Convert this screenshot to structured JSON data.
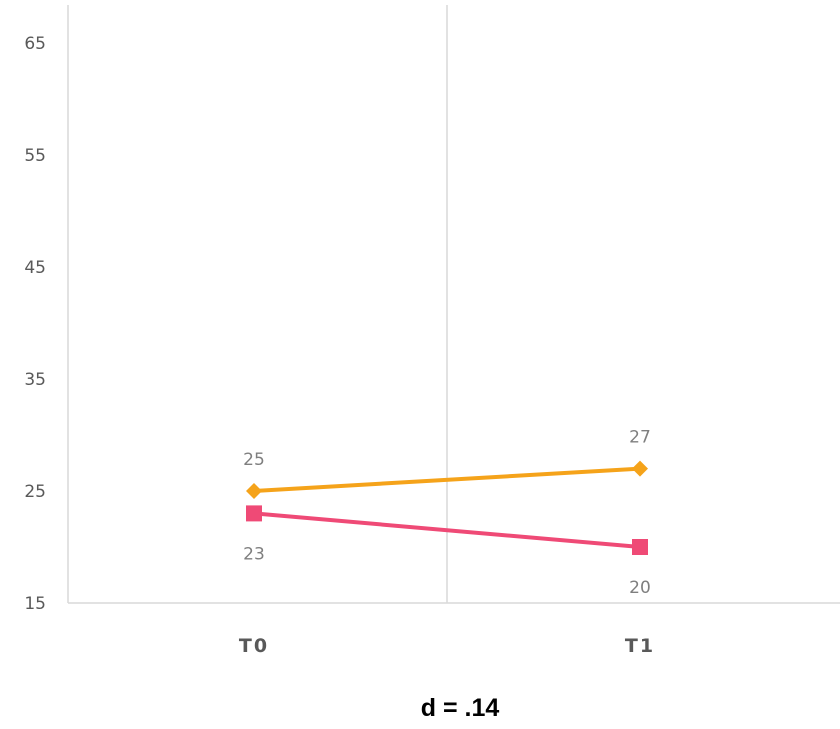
{
  "chart_data": {
    "type": "line",
    "categories": [
      "T0",
      "T1"
    ],
    "ylim": [
      15,
      69
    ],
    "yticks": [
      15,
      25,
      35,
      45,
      55,
      65
    ],
    "grid": "vertical category separators",
    "legend": "none",
    "series": [
      {
        "values": [
          25,
          27
        ],
        "color": "#f5a31a",
        "marker": "diamond",
        "label_position": "above"
      },
      {
        "values": [
          23,
          20
        ],
        "color": "#ef4a76",
        "marker": "square",
        "label_position": "below"
      }
    ],
    "caption": "d = .14"
  }
}
